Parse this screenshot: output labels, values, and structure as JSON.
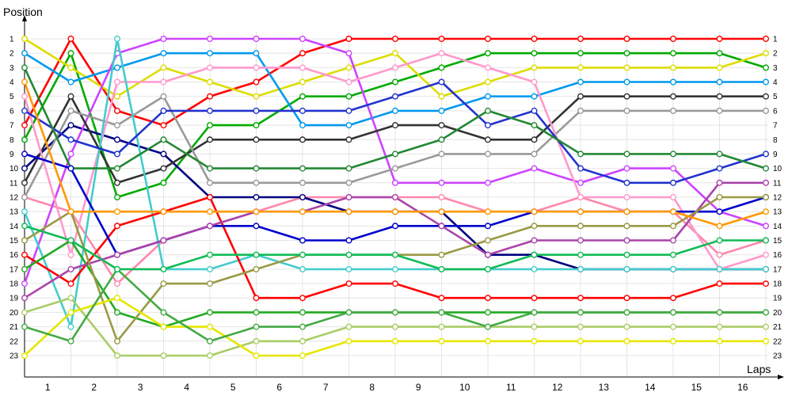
{
  "chart_data": {
    "type": "line",
    "ylabel": "Position",
    "xlabel": "Laps",
    "y_ticks": [
      "1",
      "2",
      "3",
      "4",
      "5",
      "6",
      "7",
      "8",
      "9",
      "10",
      "11",
      "12",
      "13",
      "14",
      "15",
      "16",
      "17",
      "18",
      "19",
      "20",
      "21",
      "22",
      "23"
    ],
    "x_ticks": [
      "1",
      "2",
      "3",
      "4",
      "5",
      "6",
      "7",
      "8",
      "9",
      "10",
      "11",
      "12",
      "13",
      "14",
      "15",
      "16"
    ],
    "ylim": [
      1,
      23
    ],
    "y_inverted": true,
    "grid": true,
    "legend": "none",
    "x_points": [
      0,
      1,
      2,
      3,
      4,
      5,
      6,
      7,
      8,
      9,
      10,
      11,
      12,
      13,
      14,
      15,
      16
    ],
    "series": [
      {
        "color": "#ff0000",
        "values": [
          7,
          1,
          6,
          7,
          5,
          4,
          2,
          1,
          1,
          1,
          1,
          1,
          1,
          1,
          1,
          1,
          1
        ]
      },
      {
        "color": "#00aa00",
        "values": [
          8,
          2,
          12,
          11,
          7,
          7,
          5,
          5,
          4,
          3,
          2,
          2,
          2,
          2,
          2,
          2,
          3
        ]
      },
      {
        "color": "#dddd00",
        "values": [
          1,
          3,
          5,
          3,
          4,
          5,
          4,
          3,
          2,
          5,
          4,
          3,
          3,
          3,
          3,
          3,
          2
        ]
      },
      {
        "color": "#ff88aa",
        "values": [
          12,
          13,
          18,
          15,
          14,
          13,
          12,
          12,
          12,
          12,
          13,
          13,
          12,
          13,
          13,
          16,
          15
        ]
      },
      {
        "color": "#0099ee",
        "values": [
          2,
          4,
          3,
          2,
          2,
          2,
          7,
          7,
          6,
          6,
          5,
          5,
          4,
          4,
          4,
          4,
          4
        ]
      },
      {
        "color": "#000080",
        "values": [
          10,
          7,
          8,
          9,
          12,
          12,
          12,
          13,
          13,
          13,
          16,
          16,
          17,
          17,
          17,
          17,
          17
        ]
      },
      {
        "color": "#cc44ff",
        "values": [
          18,
          9,
          2,
          1,
          1,
          1,
          1,
          2,
          11,
          11,
          11,
          10,
          11,
          10,
          10,
          13,
          14
        ]
      },
      {
        "color": "#333333",
        "values": [
          11,
          5,
          11,
          10,
          8,
          8,
          8,
          8,
          7,
          7,
          8,
          8,
          5,
          5,
          5,
          5,
          5
        ]
      },
      {
        "color": "#999999",
        "values": [
          12,
          6,
          7,
          5,
          11,
          11,
          11,
          11,
          10,
          9,
          9,
          9,
          6,
          6,
          6,
          6,
          6
        ]
      },
      {
        "color": "#ff99cc",
        "values": [
          5,
          16,
          4,
          4,
          3,
          3,
          3,
          4,
          3,
          2,
          3,
          4,
          12,
          12,
          12,
          17,
          16
        ]
      },
      {
        "color": "#44cccc",
        "values": [
          13,
          21,
          1,
          17,
          17,
          16,
          17,
          17,
          17,
          17,
          17,
          17,
          17,
          17,
          17,
          17,
          17
        ]
      },
      {
        "color": "#2233cc",
        "values": [
          6,
          8,
          9,
          6,
          6,
          6,
          6,
          6,
          5,
          4,
          7,
          6,
          10,
          11,
          11,
          10,
          9
        ]
      },
      {
        "color": "#ff0000",
        "values": [
          16,
          18,
          14,
          13,
          12,
          19,
          19,
          18,
          18,
          19,
          19,
          19,
          19,
          19,
          19,
          18,
          18
        ]
      },
      {
        "color": "#22aa22",
        "values": [
          17,
          15,
          20,
          21,
          20,
          20,
          20,
          20,
          20,
          20,
          20,
          20,
          20,
          20,
          20,
          20,
          20
        ]
      },
      {
        "color": "#228833",
        "values": [
          3,
          10,
          10,
          8,
          10,
          10,
          10,
          10,
          9,
          8,
          6,
          7,
          9,
          9,
          9,
          9,
          10
        ]
      },
      {
        "color": "#0000cc",
        "values": [
          9,
          10,
          16,
          15,
          14,
          14,
          15,
          15,
          14,
          14,
          14,
          13,
          13,
          13,
          13,
          13,
          12
        ]
      },
      {
        "color": "#aa44aa",
        "values": [
          19,
          17,
          16,
          15,
          14,
          13,
          13,
          12,
          12,
          14,
          16,
          15,
          15,
          15,
          15,
          11,
          11
        ]
      },
      {
        "color": "#999944",
        "values": [
          15,
          13,
          22,
          18,
          18,
          17,
          16,
          16,
          16,
          16,
          15,
          14,
          14,
          14,
          14,
          12,
          12
        ]
      },
      {
        "color": "#ff9900",
        "values": [
          4,
          13,
          13,
          13,
          13,
          13,
          13,
          13,
          13,
          13,
          13,
          13,
          13,
          13,
          13,
          14,
          13
        ]
      },
      {
        "color": "#aacc66",
        "values": [
          20,
          19,
          23,
          23,
          23,
          22,
          22,
          21,
          21,
          21,
          21,
          21,
          21,
          21,
          21,
          21,
          21
        ]
      },
      {
        "color": "#e6e600",
        "values": [
          23,
          20,
          19,
          21,
          21,
          23,
          23,
          22,
          22,
          22,
          22,
          22,
          22,
          22,
          22,
          22,
          22
        ]
      },
      {
        "color": "#44aa44",
        "values": [
          21,
          22,
          17,
          20,
          22,
          21,
          21,
          20,
          20,
          20,
          21,
          20,
          20,
          20,
          20,
          20,
          20
        ]
      },
      {
        "color": "#11bb55",
        "values": [
          14,
          15,
          17,
          17,
          16,
          16,
          16,
          16,
          16,
          17,
          17,
          16,
          16,
          16,
          16,
          15,
          15
        ]
      }
    ]
  }
}
